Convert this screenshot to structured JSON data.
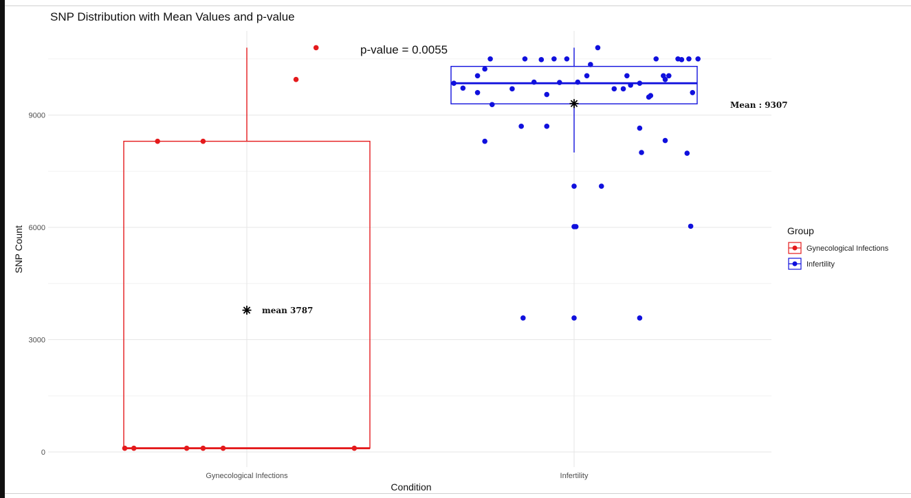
{
  "chart_data": {
    "type": "box",
    "title": "SNP Distribution with Mean Values and p-value",
    "xlabel": "Condition",
    "ylabel": "SNP Count",
    "categories": [
      "Gynecological Infections",
      "Infertility"
    ],
    "ylim": [
      -100,
      11000
    ],
    "yticks": [
      0,
      3000,
      6000,
      9000
    ],
    "grid": true,
    "legend": {
      "title": "Group",
      "position": "right",
      "entries": [
        "Gynecological Infections",
        "Infertility"
      ]
    },
    "annotations": {
      "p_value": "p-value = 0.0055",
      "mean_gyn": "mean 3787",
      "mean_inf": "Mean : 9307"
    },
    "series": [
      {
        "name": "Gynecological Infections",
        "color": "#e41a1c",
        "box": {
          "min": 100,
          "q1": 100,
          "median": 100,
          "q3": 8300,
          "max": 10800
        },
        "mean": 3787,
        "points": [
          {
            "x": -0.49,
            "y": 8300
          },
          {
            "x": -0.24,
            "y": 8300
          },
          {
            "x": 0.27,
            "y": 9950
          },
          {
            "x": 0.38,
            "y": 10800
          },
          {
            "x": -0.67,
            "y": 100
          },
          {
            "x": -0.62,
            "y": 100
          },
          {
            "x": -0.33,
            "y": 100
          },
          {
            "x": -0.24,
            "y": 100
          },
          {
            "x": -0.13,
            "y": 100
          },
          {
            "x": 0.59,
            "y": 100
          }
        ]
      },
      {
        "name": "Infertility",
        "color": "#1010dd",
        "box": {
          "min": 8000,
          "q1": 9300,
          "median": 9850,
          "q3": 10300,
          "max": 10800
        },
        "mean": 9307,
        "points": [
          {
            "x": -0.66,
            "y": 9850
          },
          {
            "x": -0.61,
            "y": 9720
          },
          {
            "x": -0.53,
            "y": 10050
          },
          {
            "x": -0.53,
            "y": 9600
          },
          {
            "x": -0.49,
            "y": 10230
          },
          {
            "x": -0.46,
            "y": 10500
          },
          {
            "x": -0.45,
            "y": 9280
          },
          {
            "x": -0.34,
            "y": 9700
          },
          {
            "x": -0.27,
            "y": 10500
          },
          {
            "x": -0.22,
            "y": 9880
          },
          {
            "x": -0.18,
            "y": 10480
          },
          {
            "x": -0.15,
            "y": 9550
          },
          {
            "x": -0.11,
            "y": 10500
          },
          {
            "x": -0.08,
            "y": 9870
          },
          {
            "x": -0.04,
            "y": 10500
          },
          {
            "x": 0.02,
            "y": 9880
          },
          {
            "x": 0.07,
            "y": 10050
          },
          {
            "x": 0.09,
            "y": 10350
          },
          {
            "x": 0.13,
            "y": 10800
          },
          {
            "x": 0.22,
            "y": 9700
          },
          {
            "x": 0.27,
            "y": 9700
          },
          {
            "x": 0.29,
            "y": 10050
          },
          {
            "x": 0.31,
            "y": 9800
          },
          {
            "x": 0.36,
            "y": 9850
          },
          {
            "x": 0.41,
            "y": 9480
          },
          {
            "x": 0.42,
            "y": 9520
          },
          {
            "x": 0.45,
            "y": 10500
          },
          {
            "x": 0.49,
            "y": 10050
          },
          {
            "x": 0.5,
            "y": 9950
          },
          {
            "x": 0.52,
            "y": 10050
          },
          {
            "x": 0.57,
            "y": 10500
          },
          {
            "x": 0.59,
            "y": 10480
          },
          {
            "x": 0.63,
            "y": 10500
          },
          {
            "x": 0.65,
            "y": 9600
          },
          {
            "x": 0.68,
            "y": 10500
          },
          {
            "x": -0.49,
            "y": 8300
          },
          {
            "x": -0.29,
            "y": 8700
          },
          {
            "x": -0.15,
            "y": 8700
          },
          {
            "x": 0.36,
            "y": 8650
          },
          {
            "x": 0.37,
            "y": 8000
          },
          {
            "x": 0.5,
            "y": 8320
          },
          {
            "x": 0.62,
            "y": 7980
          },
          {
            "x": 0.0,
            "y": 7100
          },
          {
            "x": 0.15,
            "y": 7100
          },
          {
            "x": 0.0,
            "y": 6020
          },
          {
            "x": 0.01,
            "y": 6020
          },
          {
            "x": 0.64,
            "y": 6030
          },
          {
            "x": -0.28,
            "y": 3580
          },
          {
            "x": 0.0,
            "y": 3580
          },
          {
            "x": 0.36,
            "y": 3580
          }
        ]
      }
    ]
  }
}
